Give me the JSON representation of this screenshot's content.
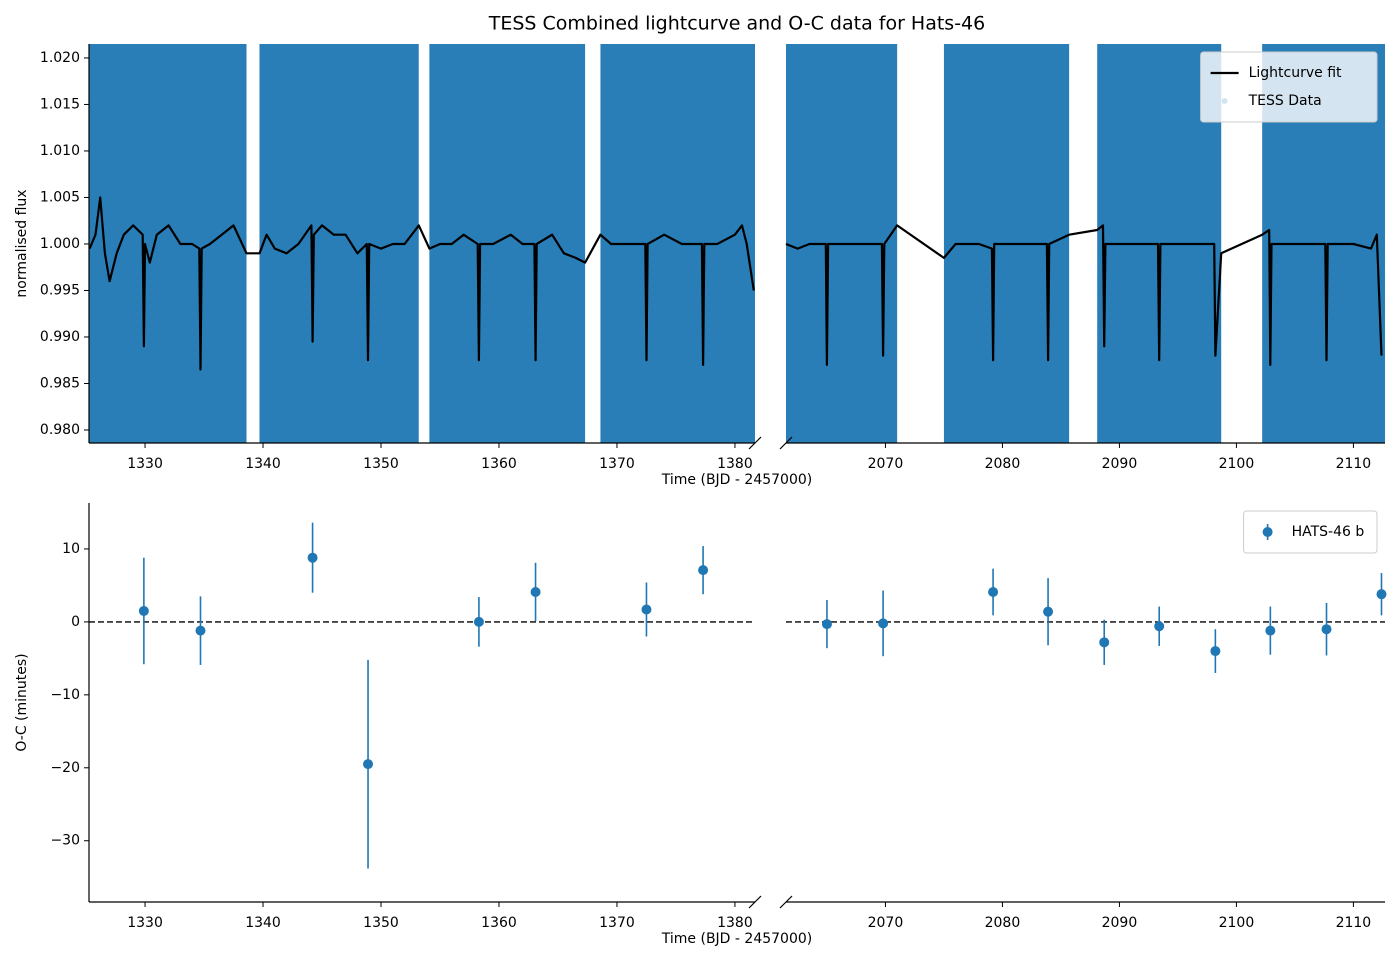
{
  "chart_data": [
    {
      "type": "line",
      "title": "TESS Combined lightcurve and O-C data for Hats-46",
      "xlabel": "Time (BJD - 2457000)",
      "ylabel": "normalised flux",
      "panels": [
        {
          "xlim": [
            1325.25,
            1381.7
          ],
          "xticks": [
            1330,
            1340,
            1350,
            1360,
            1370,
            1380
          ]
        },
        {
          "xlim": [
            2061.5,
            2112.7
          ],
          "xticks": [
            2070,
            2080,
            2090,
            2100,
            2110
          ]
        }
      ],
      "ylim": [
        0.9786,
        1.0215
      ],
      "yticks": [
        {
          "value": 0.98,
          "label": "0.980"
        },
        {
          "value": 0.985,
          "label": "0.985"
        },
        {
          "value": 0.99,
          "label": "0.990"
        },
        {
          "value": 0.995,
          "label": "0.995"
        },
        {
          "value": 1,
          "label": "1.000"
        },
        {
          "value": 1.005,
          "label": "1.005"
        },
        {
          "value": 1.01,
          "label": "1.010"
        },
        {
          "value": 1.015,
          "label": "1.015"
        },
        {
          "value": 1.02,
          "label": "1.020"
        }
      ],
      "legend": "upper right",
      "series": [
        {
          "name": "Lightcurve fit",
          "type": "line",
          "color": "#000000",
          "x": [
            1325.3,
            1325.8,
            1326.2,
            1326.6,
            1327.0,
            1327.6,
            1328.2,
            1329.0,
            1329.8,
            1329.9,
            1330.0,
            1330.4,
            1331.0,
            1332.0,
            1333.0,
            1334.0,
            1334.6,
            1334.7,
            1334.8,
            1335.5,
            1336.5,
            1337.5,
            1338.6,
            1339.7,
            1340.3,
            1341.0,
            1342.0,
            1343.0,
            1344.1,
            1344.2,
            1344.3,
            1345.0,
            1346.0,
            1347.0,
            1348.0,
            1348.8,
            1348.9,
            1349.0,
            1350.0,
            1351.0,
            1352.0,
            1353.2,
            1354.1,
            1355.0,
            1356.0,
            1357.0,
            1358.2,
            1358.3,
            1358.4,
            1359.5,
            1361.0,
            1362.0,
            1363.0,
            1363.1,
            1363.2,
            1364.5,
            1365.5,
            1366.5,
            1367.3,
            1368.6,
            1369.5,
            1371.0,
            1372.4,
            1372.5,
            1372.6,
            1374.0,
            1375.5,
            1377.2,
            1377.3,
            1377.4,
            1378.5,
            1380.0,
            1380.6,
            1381.0,
            1381.6,
            2061.5,
            2062.5,
            2063.5,
            2064.9,
            2065.0,
            2065.1,
            2066.5,
            2068.0,
            2069.7,
            2069.8,
            2069.9,
            2071.0,
            2075.0,
            2076.0,
            2077.0,
            2078.0,
            2079.1,
            2079.2,
            2079.3,
            2081.0,
            2082.5,
            2083.8,
            2083.9,
            2084.0,
            2085.7,
            2088.1,
            2088.6,
            2088.7,
            2088.8,
            2090.5,
            2092.0,
            2093.3,
            2093.4,
            2093.5,
            2095.0,
            2097.0,
            2098.1,
            2098.2,
            2098.7,
            2102.2,
            2102.8,
            2102.9,
            2103.0,
            2105.0,
            2107.6,
            2107.7,
            2107.8,
            2110.0,
            2111.5,
            2112.0,
            2112.4
          ],
          "values": [
            0.9995,
            1.001,
            1.005,
            0.999,
            0.996,
            0.999,
            1.001,
            1.002,
            1.001,
            0.989,
            1.0,
            0.998,
            1.001,
            1.002,
            1.0,
            1.0,
            0.9995,
            0.9865,
            0.9995,
            1.0,
            1.001,
            1.002,
            0.999,
            0.999,
            1.001,
            0.9995,
            0.999,
            1.0,
            1.002,
            0.9895,
            1.001,
            1.002,
            1.001,
            1.001,
            0.999,
            1.0,
            0.9875,
            1.0,
            0.9995,
            1.0,
            1.0,
            1.002,
            0.9995,
            1.0,
            1.0,
            1.001,
            1.0,
            0.9875,
            1.0,
            1.0,
            1.001,
            1.0,
            1.0,
            0.9875,
            1.0,
            1.001,
            0.999,
            0.9985,
            0.998,
            1.001,
            1.0,
            1.0,
            1.0,
            0.9875,
            1.0,
            1.001,
            1.0,
            1.0,
            0.987,
            1.0,
            1.0,
            1.001,
            1.002,
            1.0,
            0.995,
            1.0,
            0.9995,
            1.0,
            1.0,
            0.987,
            1.0,
            1.0,
            1.0,
            1.0,
            0.988,
            1.0,
            1.002,
            0.9985,
            1.0,
            1.0,
            1.0,
            0.9995,
            0.9875,
            1.0,
            1.0,
            1.0,
            1.0,
            0.9875,
            1.0,
            1.001,
            1.0015,
            1.002,
            0.989,
            1.0,
            1.0,
            1.0,
            1.0,
            0.9875,
            1.0,
            1.0,
            1.0,
            1.0,
            0.988,
            0.999,
            1.001,
            1.0015,
            0.987,
            1.0,
            1.0,
            1.0,
            0.9875,
            1.0,
            1.0,
            0.9995,
            1.001,
            0.988
          ]
        },
        {
          "name": "TESS Data",
          "type": "span",
          "color": "#1f77b4",
          "spans": [
            [
              1325.25,
              1338.6
            ],
            [
              1339.7,
              1353.2
            ],
            [
              1354.1,
              1367.3
            ],
            [
              1368.6,
              1381.7
            ],
            [
              2061.5,
              2071.0
            ],
            [
              2075.0,
              2085.7
            ],
            [
              2088.1,
              2098.7
            ],
            [
              2102.2,
              2112.7
            ]
          ]
        }
      ]
    },
    {
      "type": "errorbar",
      "xlabel": "Time (BJD - 2457000)",
      "ylabel": "O-C (minutes)",
      "panels": [
        {
          "xlim": [
            1325.25,
            1381.7
          ],
          "xticks": [
            1330,
            1340,
            1350,
            1360,
            1370,
            1380
          ]
        },
        {
          "xlim": [
            2061.5,
            2112.7
          ],
          "xticks": [
            2070,
            2080,
            2090,
            2100,
            2110
          ]
        }
      ],
      "ylim": [
        -38.4,
        16.3
      ],
      "yticks": [
        {
          "value": -30,
          "label": "−30"
        },
        {
          "value": -20,
          "label": "−20"
        },
        {
          "value": -10,
          "label": "−10"
        },
        0,
        10
      ],
      "hline": 0,
      "legend": "upper right",
      "series": [
        {
          "name": "HATS-46 b",
          "color": "#1f77b4",
          "x": [
            1329.9,
            1334.7,
            1344.2,
            1348.9,
            1358.3,
            1363.1,
            1372.5,
            1377.3,
            2065.0,
            2069.8,
            2079.2,
            2083.9,
            2088.7,
            2093.4,
            2098.2,
            2102.9,
            2107.7,
            2112.4
          ],
          "values": [
            1.5,
            -1.2,
            8.8,
            -19.5,
            0.0,
            4.1,
            1.7,
            7.1,
            -0.3,
            -0.2,
            4.1,
            1.4,
            -2.8,
            -0.6,
            -4.0,
            -1.2,
            -1.0,
            3.8
          ],
          "errors": [
            7.3,
            4.7,
            4.8,
            14.3,
            3.4,
            4.0,
            3.7,
            3.3,
            3.3,
            4.5,
            3.2,
            4.6,
            3.1,
            2.7,
            3.0,
            3.3,
            3.6,
            2.9
          ]
        }
      ]
    }
  ]
}
